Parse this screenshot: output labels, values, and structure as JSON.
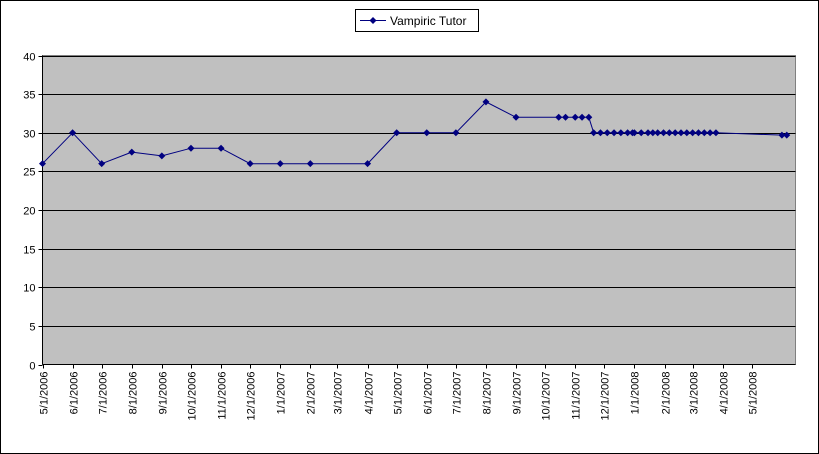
{
  "chart_data": {
    "type": "line",
    "title": "",
    "xlabel": "",
    "ylabel": "",
    "ylim": [
      0,
      40
    ],
    "yticks": [
      0,
      5,
      10,
      15,
      20,
      25,
      30,
      35,
      40
    ],
    "xlim": [
      "2006-05-01",
      "2008-06-15"
    ],
    "xtick_labels": [
      "5/1/2006",
      "6/1/2006",
      "7/1/2006",
      "8/1/2006",
      "9/1/2006",
      "10/1/2006",
      "11/1/2006",
      "12/1/2006",
      "1/1/2007",
      "2/1/2007",
      "3/1/2007",
      "4/1/2007",
      "5/1/2007",
      "6/1/2007",
      "7/1/2007",
      "8/1/2007",
      "9/1/2007",
      "10/1/2007",
      "11/1/2007",
      "12/1/2007",
      "1/1/2008",
      "2/1/2008",
      "3/1/2008",
      "4/1/2008",
      "5/1/2008"
    ],
    "grid": "horizontal",
    "legend_position": "top-center",
    "colors": {
      "series": "#000080",
      "plot_bg": "#c0c0c0",
      "gridline": "#000000"
    },
    "series": [
      {
        "name": "Vampiric Tutor",
        "x": [
          "2006-05-01",
          "2006-06-01",
          "2006-07-01",
          "2006-08-01",
          "2006-09-01",
          "2006-10-01",
          "2006-11-01",
          "2006-12-01",
          "2007-01-01",
          "2007-02-01",
          "2007-04-01",
          "2007-05-01",
          "2007-06-01",
          "2007-07-01",
          "2007-08-01",
          "2007-09-01",
          "2007-10-15",
          "2007-10-22",
          "2007-11-01",
          "2007-11-08",
          "2007-11-15",
          "2007-11-20",
          "2007-11-27",
          "2007-12-04",
          "2007-12-11",
          "2007-12-18",
          "2007-12-25",
          "2007-12-30",
          "2008-01-01",
          "2008-01-08",
          "2008-01-15",
          "2008-01-20",
          "2008-01-25",
          "2008-01-31",
          "2008-02-06",
          "2008-02-12",
          "2008-02-18",
          "2008-02-24",
          "2008-03-01",
          "2008-03-07",
          "2008-03-13",
          "2008-03-19",
          "2008-03-25",
          "2008-06-01",
          "2008-06-06"
        ],
        "values": [
          26,
          30,
          26,
          27.5,
          27,
          28,
          28,
          26,
          26,
          26,
          26,
          30,
          30,
          30,
          34,
          32,
          32,
          32,
          32,
          32,
          32,
          30,
          30,
          30,
          30,
          30,
          30,
          30,
          30,
          30,
          30,
          30,
          30,
          30,
          30,
          30,
          30,
          30,
          30,
          30,
          30,
          30,
          30,
          29.7,
          29.7
        ]
      }
    ]
  }
}
